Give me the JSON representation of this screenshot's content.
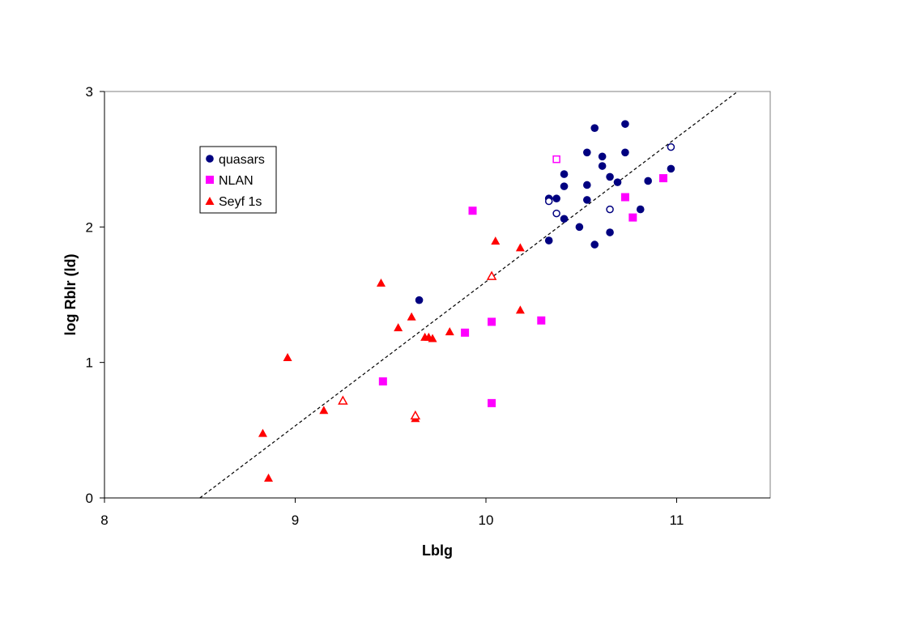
{
  "chart_data": {
    "type": "scatter",
    "xlabel": "Lblg",
    "ylabel": "log Rblr (ld)",
    "xlim": [
      8,
      11.5
    ],
    "ylim": [
      0,
      3
    ],
    "xticks": [
      "8",
      "9",
      "10",
      "11"
    ],
    "yticks": [
      "0",
      "1",
      "2",
      "3"
    ],
    "grid": false,
    "legend_placement": "upper-left",
    "series": [
      {
        "name": "quasars",
        "marker": "circle",
        "color": "#000080",
        "filled": [
          [
            9.65,
            1.46
          ],
          [
            10.33,
            1.9
          ],
          [
            10.33,
            2.21
          ],
          [
            10.37,
            2.21
          ],
          [
            10.41,
            2.06
          ],
          [
            10.41,
            2.3
          ],
          [
            10.41,
            2.39
          ],
          [
            10.49,
            2.0
          ],
          [
            10.53,
            2.2
          ],
          [
            10.53,
            2.31
          ],
          [
            10.53,
            2.55
          ],
          [
            10.57,
            1.87
          ],
          [
            10.57,
            2.73
          ],
          [
            10.61,
            2.45
          ],
          [
            10.61,
            2.52
          ],
          [
            10.65,
            1.96
          ],
          [
            10.65,
            2.37
          ],
          [
            10.69,
            2.33
          ],
          [
            10.73,
            2.55
          ],
          [
            10.73,
            2.76
          ],
          [
            10.81,
            2.13
          ],
          [
            10.85,
            2.34
          ],
          [
            10.97,
            2.43
          ]
        ],
        "open": [
          [
            10.33,
            2.19
          ],
          [
            10.37,
            2.1
          ],
          [
            10.65,
            2.13
          ],
          [
            10.97,
            2.59
          ]
        ]
      },
      {
        "name": "NLAN",
        "marker": "square",
        "color": "#FF00FF",
        "filled": [
          [
            9.46,
            0.86
          ],
          [
            9.89,
            1.22
          ],
          [
            9.93,
            2.12
          ],
          [
            10.03,
            1.3
          ],
          [
            10.03,
            0.7
          ],
          [
            10.29,
            1.31
          ],
          [
            10.73,
            2.22
          ],
          [
            10.77,
            2.07
          ],
          [
            10.93,
            2.36
          ]
        ],
        "open": [
          [
            10.37,
            2.5
          ]
        ]
      },
      {
        "name": "Seyf 1s",
        "marker": "triangle",
        "color": "#FF0000",
        "filled": [
          [
            8.83,
            0.48
          ],
          [
            8.86,
            0.15
          ],
          [
            8.96,
            1.04
          ],
          [
            9.15,
            0.65
          ],
          [
            9.45,
            1.59
          ],
          [
            9.54,
            1.26
          ],
          [
            9.61,
            1.34
          ],
          [
            9.63,
            0.59
          ],
          [
            9.68,
            1.19
          ],
          [
            9.7,
            1.19
          ],
          [
            9.72,
            1.18
          ],
          [
            9.81,
            1.23
          ],
          [
            10.05,
            1.9
          ],
          [
            10.18,
            1.85
          ],
          [
            10.18,
            1.39
          ]
        ],
        "open": [
          [
            9.25,
            0.72
          ],
          [
            9.63,
            0.61
          ],
          [
            10.03,
            1.64
          ]
        ]
      }
    ],
    "fit_line": {
      "style": "dashed",
      "color": "#000000",
      "points": [
        [
          8.5,
          0.0
        ],
        [
          11.32,
          3.0
        ]
      ]
    }
  }
}
